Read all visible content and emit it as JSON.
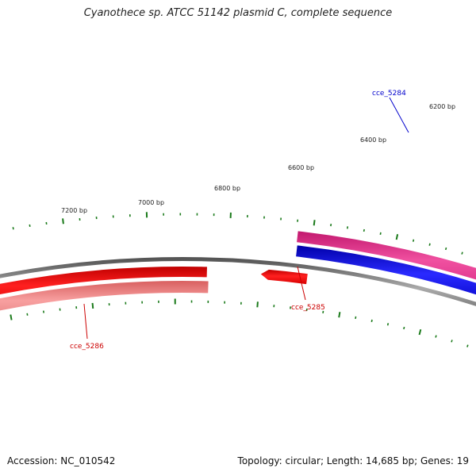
{
  "title": "Cyanothece sp. ATCC 51142 plasmid C, complete sequence",
  "footer": {
    "accession": "Accession: NC_010542",
    "topology_info": "Topology: circular; Length: 14,685 bp; Genes: 19"
  },
  "ruler": {
    "unit": "bp",
    "labels": [
      "6200 bp",
      "6400 bp",
      "6600 bp",
      "6800 bp",
      "7000 bp",
      "7200 bp"
    ]
  },
  "genes": [
    {
      "name": "cce_5284",
      "strand": "forward",
      "color": "#0000cc"
    },
    {
      "name": "cce_5285",
      "strand": "reverse",
      "color": "#cc0000"
    },
    {
      "name": "cce_5286",
      "strand": "reverse",
      "color": "#cc0000"
    }
  ],
  "colors": {
    "tick": "#1a7a1a",
    "backbone": "#808080",
    "magenta_track": "#e8308e",
    "blue_track": "#1414e0",
    "red_track": "#ee1111",
    "pink_track": "#f08080",
    "label_blue": "#0000cc",
    "label_red": "#cc0000"
  }
}
